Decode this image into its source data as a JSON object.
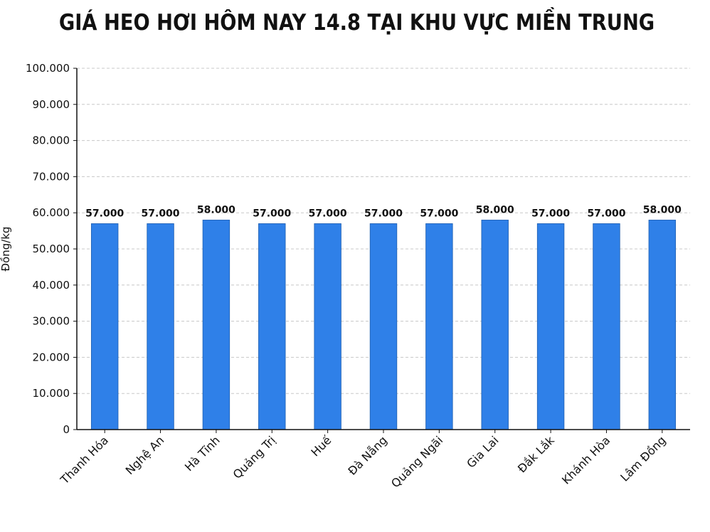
{
  "chart_data": {
    "type": "bar",
    "title": "GIÁ HEO HƠI HÔM NAY 14.8 TẠI KHU VỰC MIỀN TRUNG",
    "xlabel": "",
    "ylabel": "Đồng/kg",
    "categories": [
      "Thanh Hóa",
      "Nghệ An",
      "Hà Tĩnh",
      "Quảng Trị",
      "Huế",
      "Đà Nẵng",
      "Quảng Ngãi",
      "Gia Lai",
      "Đắk Lắk",
      "Khánh Hòa",
      "Lâm Đồng"
    ],
    "values": [
      57000,
      57000,
      58000,
      57000,
      57000,
      57000,
      57000,
      58000,
      57000,
      57000,
      58000
    ],
    "data_labels": [
      "57.000",
      "57.000",
      "58.000",
      "57.000",
      "57.000",
      "57.000",
      "57.000",
      "58.000",
      "57.000",
      "57.000",
      "58.000"
    ],
    "yticks": [
      0,
      10000,
      20000,
      30000,
      40000,
      50000,
      60000,
      70000,
      80000,
      90000,
      100000
    ],
    "ytick_labels": [
      "0",
      "10.000",
      "20.000",
      "30.000",
      "40.000",
      "50.000",
      "60.000",
      "70.000",
      "80.000",
      "90.000",
      "100.000"
    ],
    "ylim": [
      0,
      100000
    ],
    "grid": true,
    "bar_color": "#2f80e8"
  }
}
